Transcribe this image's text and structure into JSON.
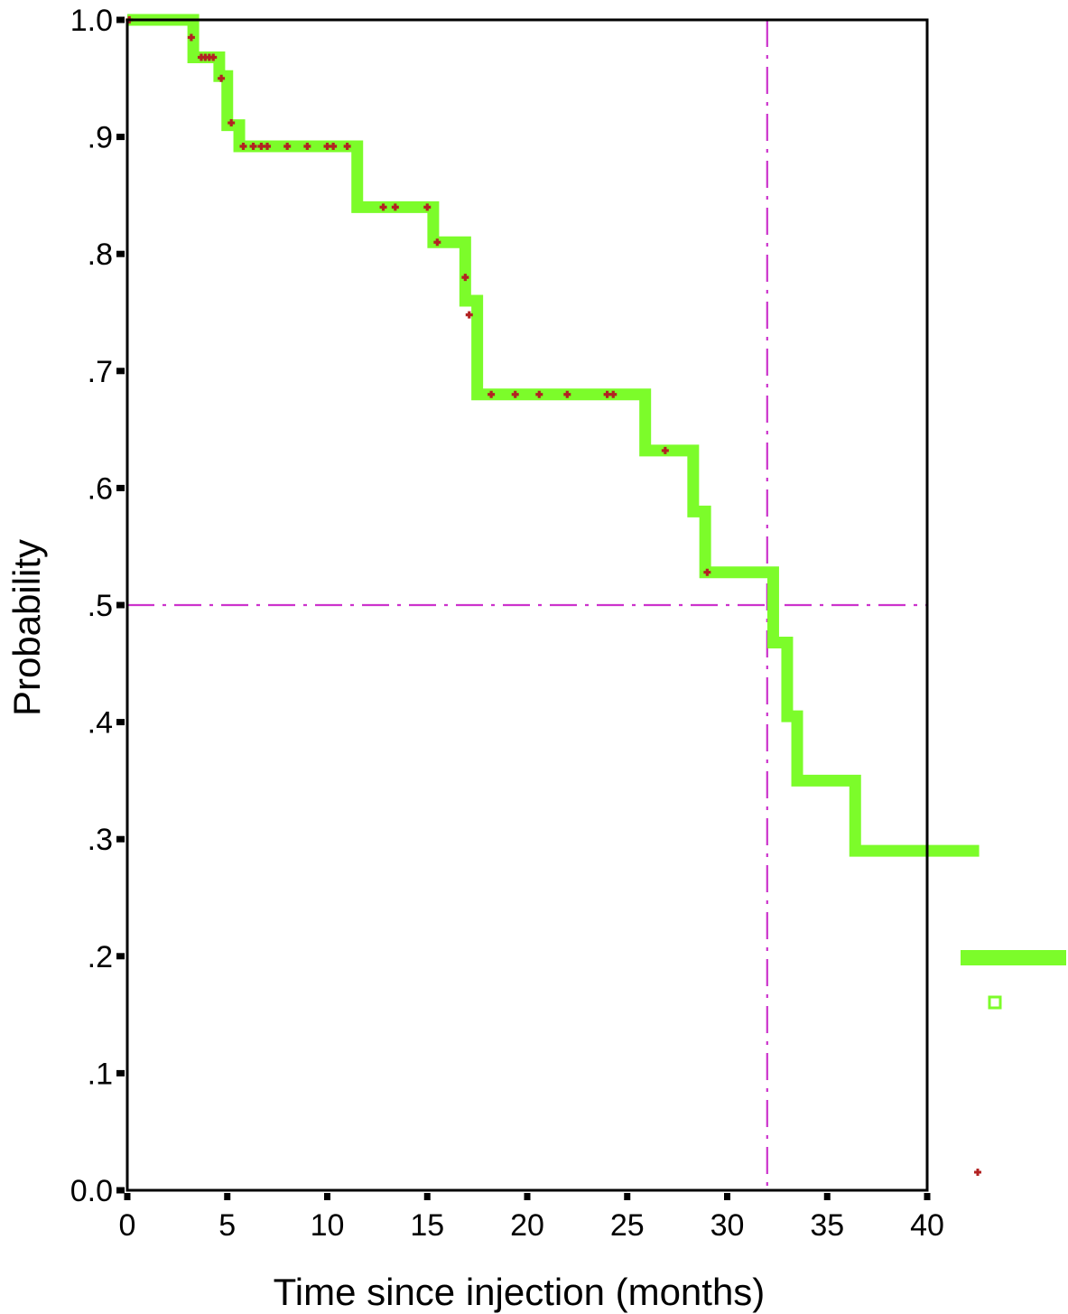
{
  "chart_data": {
    "type": "line",
    "title": "",
    "xlabel": "Time since injection (months)",
    "ylabel": "Probability",
    "xlim": [
      0,
      40
    ],
    "ylim": [
      0,
      1
    ],
    "grid": false,
    "x_ticks": [
      0,
      5,
      10,
      15,
      20,
      25,
      30,
      35,
      40
    ],
    "x_tick_labels": [
      "0",
      "5",
      "10",
      "15",
      "20",
      "25",
      "30",
      "35",
      "40"
    ],
    "y_ticks": [
      0,
      0.1,
      0.2,
      0.3,
      0.4,
      0.5,
      0.6,
      0.7,
      0.8,
      0.9,
      1.0
    ],
    "y_tick_labels": [
      "0.0",
      ".1",
      ".2",
      ".3",
      ".4",
      ".5",
      ".6",
      ".7",
      ".8",
      ".9",
      "1.0"
    ],
    "series": [
      {
        "style": "step",
        "color": "#7cfc2a",
        "x": [
          0,
          3.0,
          3.3,
          4.6,
          5.0,
          5.6,
          11.5,
          15.3,
          16.9,
          17.5,
          25.9,
          28.3,
          28.9,
          32.3,
          33.0,
          33.5,
          36.4,
          42.6
        ],
        "y": [
          1.0,
          1.0,
          0.968,
          0.952,
          0.91,
          0.892,
          0.84,
          0.81,
          0.76,
          0.68,
          0.632,
          0.58,
          0.528,
          0.468,
          0.405,
          0.35,
          0.29,
          0.29
        ]
      }
    ],
    "censored": {
      "color": "#b22222",
      "x": [
        0.1,
        3.2,
        3.7,
        3.9,
        4.1,
        4.3,
        4.7,
        5.2,
        5.8,
        6.3,
        6.7,
        7.0,
        8.0,
        9.0,
        10.0,
        10.3,
        11.0,
        12.8,
        13.4,
        15.0,
        15.5,
        16.9,
        17.1,
        18.2,
        19.4,
        20.6,
        22.0,
        24.0,
        24.3,
        26.9,
        29.0
      ],
      "y": [
        1.0,
        0.985,
        0.968,
        0.968,
        0.968,
        0.968,
        0.95,
        0.912,
        0.892,
        0.892,
        0.892,
        0.892,
        0.892,
        0.892,
        0.892,
        0.892,
        0.892,
        0.84,
        0.84,
        0.84,
        0.81,
        0.78,
        0.748,
        0.68,
        0.68,
        0.68,
        0.68,
        0.68,
        0.68,
        0.632,
        0.528
      ]
    },
    "reference_lines": [
      {
        "orientation": "horizontal",
        "value": 0.5,
        "style": "dash-dot",
        "color": "#cc33cc"
      },
      {
        "orientation": "vertical",
        "value": 32.0,
        "style": "dash-dot",
        "color": "#cc33cc"
      }
    ],
    "legend": {
      "placement": "right",
      "entries": [
        {
          "symbol": "line",
          "color": "#7cfc2a",
          "label": ""
        },
        {
          "symbol": "square",
          "color": "#7cfc2a",
          "label": ""
        },
        {
          "symbol": "plus",
          "color": "#b22222",
          "label": ""
        }
      ]
    }
  }
}
